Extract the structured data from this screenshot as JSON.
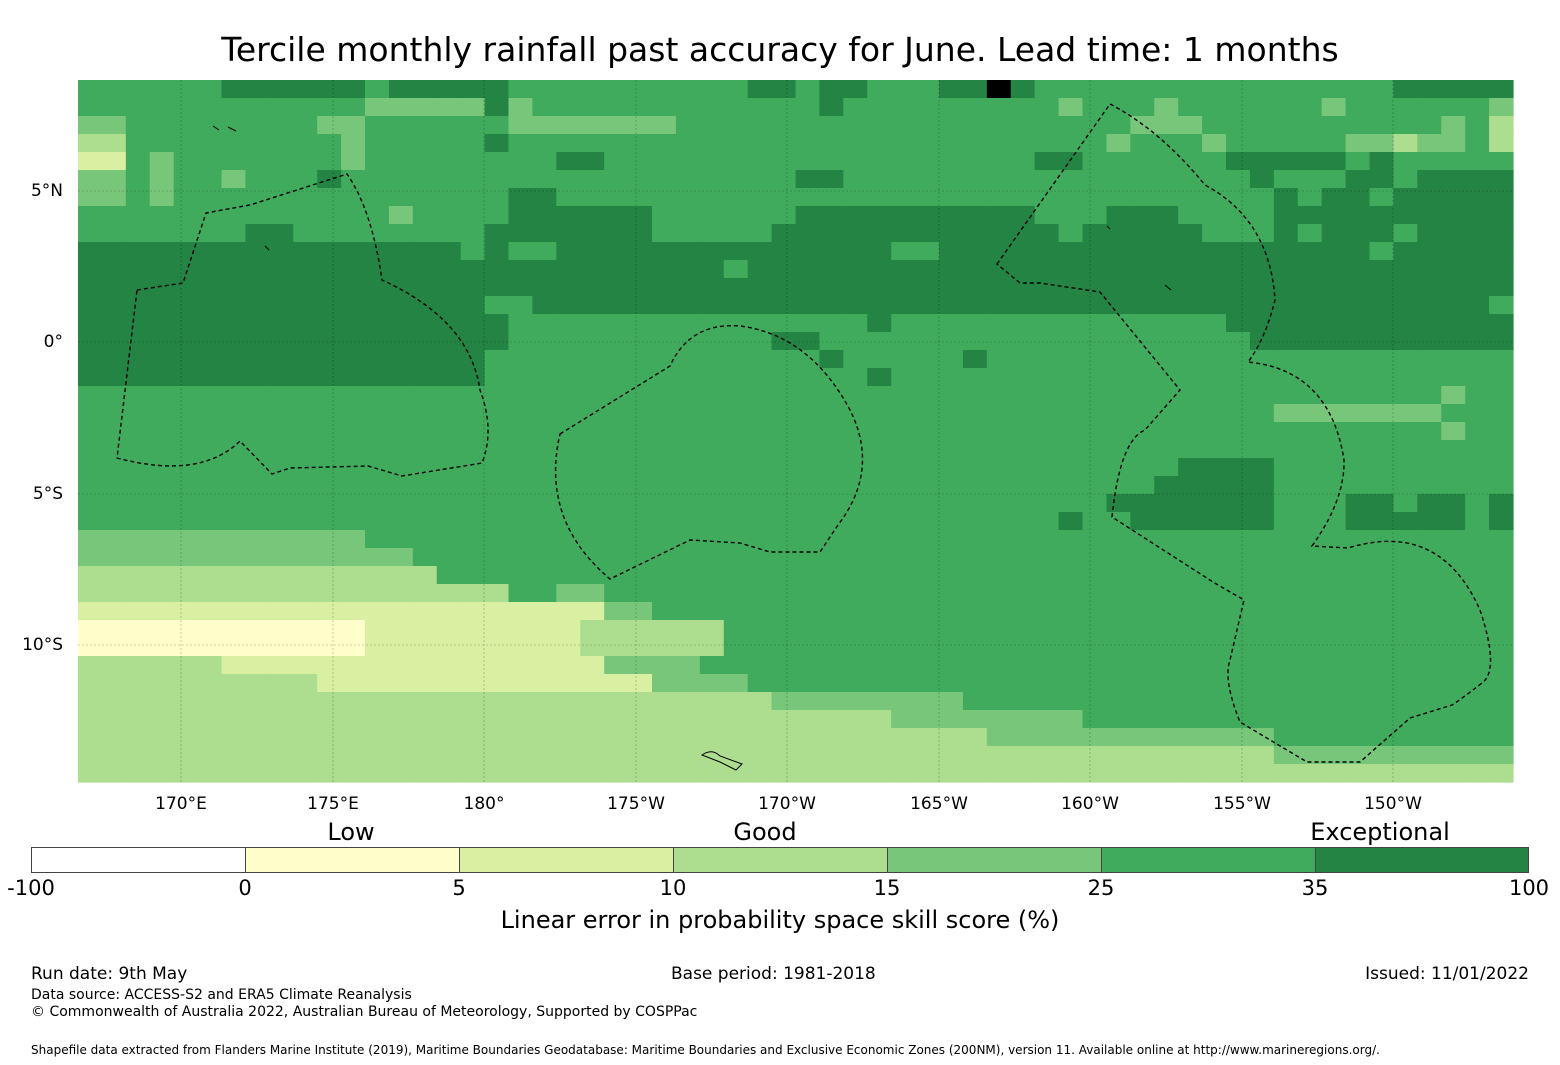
{
  "title": "Tercile monthly rainfall past accuracy for June. Lead time: 1 months",
  "map": {
    "lon_labels": [
      "170°E",
      "175°E",
      "180°",
      "175°W",
      "170°W",
      "165°W",
      "160°W",
      "155°W",
      "150°W"
    ],
    "lat_labels": [
      "5°N",
      "0°",
      "5°S",
      "10°S"
    ],
    "grid_rows": [
      "444444555555455555444444444455455444556544444444444444455555",
      "444444444444333335344444444444454444444443444344444434444443",
      "334444444433444444333333344444444444444444443334444444444342",
      "224444444443444445444444444444444444444444434443444443323342",
      "114344444443444444445544444444444444444455444444555554544444",
      "334344344454444444444444444444554444444444444444454445545555",
      "334344444444444444554444444444444444444444444444445455455555",
      "444444444444434444555555444444555555555544455544445555555555",
      "444444455444444445555555444445555555555554555554445455545555",
      "555555555555555545445555555555555544555555555555555555455555",
      "555555555555555555555555555455555555555555555555555555555555",
      "555555555555555555555555555555555555555555555555555555555555",
      "555555555555555554455555555555555555555555555555555555555554",
      "555555555555555555444444444444444544444444444444555555555555",
      "555555555555555555444444444445544444444444444444455555555555",
      "555555555555555554444444444444454444454444444444444444444444",
      "555555555555555554444444444444444544444444444444444444444444",
      "444444444444444444444444444444444444444444444444444444444344",
      "444444444444444444444444444444444444444444444444443333333444",
      "444444444444444444444444444444444444444444444444444444444344",
      "444444444444444444444444444444444444444444444444444444444444",
      "444444444444444444444444444444444444444444444455554444444444",
      "444444444444444444444444444444444444444444444555554444444444",
      "444444444444444444444444444444444444444444455555554445545545",
      "444444444444444444444444444444444444444445445555554445555545",
      "333333333333444444444444444444444444444444444444444444444444",
      "333333333333334444444444444444444444444444444444444444444444",
      "222222222222222444444444444444444444444444444444444444444444",
      "222222222222222222443344444444444444444444444444444444444444",
      "111111111111111111111133444444444444444444444444444444444444",
      "000000000000111111111222222444444444444444444444444444444444",
      "000000000000111111111222222444444444444444444444444444444444",
      "222222111111111111111133334444444444444444444444444444444444",
      "222222222211111111111111333344444444444444444444444444444444",
      "222222222222222222222222222223333333344444444444444444444444",
      "222222222222222222222222222222222233333333444444444444444444",
      "222222222222222222222222222222222222223333333333334444444444",
      "222222222222222222222222222222222222222222222222223333333333",
      "222222222222222222222222222222222222222222222222222222222222"
    ]
  },
  "legend": {
    "category_labels": [
      "Low",
      "Good",
      "Exceptional"
    ],
    "colors": [
      "#ffffff",
      "#ffffcc",
      "#d9f0a3",
      "#addd8e",
      "#78c679",
      "#41ab5d",
      "#238443"
    ],
    "tick_labels": [
      "-100",
      "0",
      "5",
      "10",
      "15",
      "25",
      "35",
      "100"
    ],
    "title": "Linear error in probability space skill score (%)"
  },
  "footer": {
    "run_date": "Run date: 9th May",
    "base_period": "Base period: 1981-2018",
    "issued": "Issued: 11/01/2022",
    "data_source": "Data source: ACCESS-S2 and ERA5 Climate Reanalysis",
    "copyright": "© Commonwealth of Australia 2022, Australian Bureau of Meteorology, Supported by COSPPac",
    "shapefile": "Shapefile data extracted from Flanders Marine Institute (2019), Maritime Boundaries Geodatabase: Maritime Boundaries and Exclusive Economic Zones (200NM), version 11. Available online at http://www.marineregions.org/."
  }
}
